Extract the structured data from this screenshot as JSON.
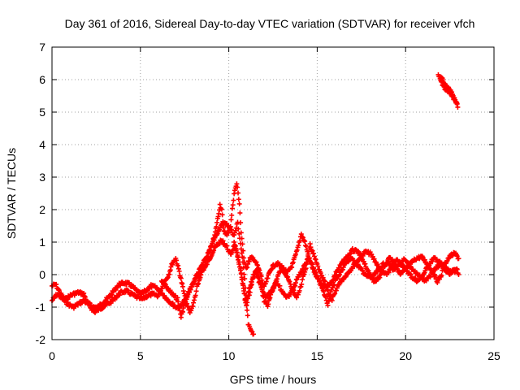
{
  "chart_data": {
    "type": "scatter",
    "title": "Day 361 of 2016, Sidereal Day-to-day VTEC variation (SDTVAR) for receiver vfch",
    "xlabel": "GPS time / hours",
    "ylabel": "SDTVAR / TECUs",
    "xlim": [
      0,
      25
    ],
    "ylim": [
      -2,
      7
    ],
    "xticks": [
      0,
      5,
      10,
      15,
      20,
      25
    ],
    "yticks": [
      -2,
      -1,
      0,
      1,
      2,
      3,
      4,
      5,
      6,
      7
    ],
    "grid": true,
    "marker": "+",
    "series_color": "#ff0000",
    "series": [
      {
        "name": "SDTVAR",
        "tracks": [
          [
            [
              0.0,
              -0.35
            ],
            [
              0.2,
              -0.3
            ],
            [
              0.4,
              -0.5
            ],
            [
              0.6,
              -0.7
            ],
            [
              0.8,
              -0.75
            ],
            [
              1.0,
              -0.65
            ],
            [
              1.2,
              -0.6
            ],
            [
              1.5,
              -0.55
            ],
            [
              1.8,
              -0.6
            ],
            [
              2.0,
              -0.85
            ],
            [
              2.3,
              -1.0
            ],
            [
              2.6,
              -1.0
            ],
            [
              2.9,
              -0.85
            ],
            [
              3.2,
              -0.7
            ],
            [
              3.5,
              -0.5
            ],
            [
              3.8,
              -0.3
            ],
            [
              4.1,
              -0.25
            ],
            [
              4.4,
              -0.3
            ],
            [
              4.7,
              -0.45
            ],
            [
              5.0,
              -0.6
            ],
            [
              5.3,
              -0.5
            ],
            [
              5.6,
              -0.35
            ],
            [
              5.9,
              -0.4
            ],
            [
              6.2,
              -0.55
            ],
            [
              6.5,
              -0.75
            ],
            [
              6.8,
              -0.9
            ],
            [
              7.0,
              -1.0
            ],
            [
              7.2,
              -1.0
            ],
            [
              7.5,
              -0.8
            ],
            [
              7.8,
              -0.5
            ],
            [
              8.1,
              -0.1
            ],
            [
              8.4,
              0.2
            ],
            [
              8.7,
              0.5
            ],
            [
              9.0,
              0.85
            ],
            [
              9.2,
              1.2
            ],
            [
              9.4,
              1.8
            ],
            [
              9.5,
              2.15
            ],
            [
              9.6,
              2.0
            ],
            [
              9.7,
              1.4
            ],
            [
              9.9,
              1.2
            ],
            [
              10.1,
              1.5
            ],
            [
              10.3,
              2.5
            ],
            [
              10.45,
              2.8
            ],
            [
              10.6,
              2.2
            ],
            [
              10.7,
              1.3
            ],
            [
              10.85,
              0.5
            ],
            [
              11.0,
              0.2
            ],
            [
              11.2,
              0.5
            ],
            [
              11.4,
              0.5
            ],
            [
              11.6,
              0.3
            ],
            [
              11.8,
              0.0
            ],
            [
              12.0,
              -0.4
            ],
            [
              12.2,
              -0.1
            ],
            [
              12.4,
              0.2
            ],
            [
              12.7,
              0.35
            ],
            [
              13.0,
              0.25
            ],
            [
              13.3,
              0.05
            ],
            [
              13.6,
              0.3
            ],
            [
              13.9,
              0.8
            ],
            [
              14.1,
              1.25
            ],
            [
              14.3,
              1.0
            ],
            [
              14.6,
              0.4
            ],
            [
              14.9,
              0.0
            ],
            [
              15.2,
              -0.3
            ],
            [
              15.5,
              -0.35
            ],
            [
              15.8,
              -0.25
            ],
            [
              16.1,
              0.1
            ],
            [
              16.4,
              0.35
            ],
            [
              16.7,
              0.55
            ],
            [
              17.0,
              0.75
            ],
            [
              17.3,
              0.7
            ],
            [
              17.6,
              0.4
            ],
            [
              17.9,
              0.1
            ],
            [
              18.2,
              -0.2
            ],
            [
              18.5,
              -0.1
            ],
            [
              18.8,
              0.2
            ],
            [
              19.1,
              0.55
            ],
            [
              19.4,
              0.35
            ],
            [
              19.7,
              0.0
            ],
            [
              20.0,
              0.15
            ],
            [
              20.3,
              0.35
            ],
            [
              20.6,
              0.5
            ],
            [
              20.9,
              0.55
            ],
            [
              21.2,
              0.35
            ],
            [
              21.5,
              0.1
            ],
            [
              21.8,
              -0.2
            ],
            [
              22.0,
              -0.05
            ],
            [
              22.2,
              0.3
            ],
            [
              22.4,
              0.5
            ],
            [
              22.6,
              0.6
            ],
            [
              22.8,
              0.65
            ],
            [
              23.0,
              0.5
            ]
          ],
          [
            [
              0.0,
              -0.8
            ],
            [
              0.3,
              -0.6
            ],
            [
              0.6,
              -0.75
            ],
            [
              0.9,
              -0.9
            ],
            [
              1.2,
              -1.0
            ],
            [
              1.5,
              -0.9
            ],
            [
              1.8,
              -0.8
            ],
            [
              2.1,
              -0.95
            ],
            [
              2.4,
              -1.15
            ],
            [
              2.7,
              -1.05
            ],
            [
              3.0,
              -0.95
            ],
            [
              3.3,
              -0.85
            ],
            [
              3.6,
              -0.7
            ],
            [
              3.9,
              -0.55
            ],
            [
              4.2,
              -0.5
            ],
            [
              4.5,
              -0.6
            ],
            [
              4.8,
              -0.7
            ],
            [
              5.1,
              -0.75
            ],
            [
              5.4,
              -0.65
            ],
            [
              5.7,
              -0.6
            ],
            [
              6.0,
              -0.65
            ],
            [
              6.3,
              -0.3
            ],
            [
              6.6,
              0.0
            ],
            [
              6.8,
              0.35
            ],
            [
              7.0,
              0.5
            ],
            [
              7.2,
              0.1
            ],
            [
              7.4,
              -0.4
            ],
            [
              7.6,
              -0.9
            ],
            [
              7.8,
              -1.15
            ],
            [
              8.0,
              -0.9
            ],
            [
              8.2,
              -0.4
            ],
            [
              8.5,
              0.1
            ],
            [
              8.8,
              0.55
            ],
            [
              9.1,
              1.0
            ],
            [
              9.4,
              1.35
            ],
            [
              9.7,
              1.6
            ],
            [
              10.0,
              1.5
            ],
            [
              10.3,
              1.2
            ],
            [
              10.5,
              1.6
            ],
            [
              10.7,
              0.8
            ],
            [
              10.9,
              -0.1
            ],
            [
              11.0,
              -0.9
            ],
            [
              11.1,
              -1.5
            ],
            [
              11.25,
              -1.75
            ],
            [
              11.4,
              -1.8
            ]
          ],
          [
            [
              6.2,
              -0.2
            ],
            [
              6.5,
              -0.4
            ],
            [
              6.8,
              -0.6
            ],
            [
              7.1,
              -0.75
            ],
            [
              7.3,
              -1.3
            ],
            [
              7.5,
              -0.9
            ],
            [
              7.8,
              -0.45
            ],
            [
              8.1,
              -0.15
            ],
            [
              8.4,
              0.05
            ],
            [
              8.7,
              0.25
            ],
            [
              9.0,
              0.6
            ],
            [
              9.3,
              0.9
            ],
            [
              9.6,
              1.05
            ],
            [
              9.9,
              0.85
            ],
            [
              10.1,
              0.6
            ],
            [
              10.3,
              0.9
            ],
            [
              10.6,
              0.35
            ],
            [
              10.8,
              -0.3
            ],
            [
              10.95,
              -0.9
            ],
            [
              11.1,
              -0.6
            ],
            [
              11.3,
              -0.2
            ],
            [
              11.5,
              0.1
            ],
            [
              11.7,
              -0.2
            ],
            [
              11.9,
              -0.5
            ],
            [
              12.1,
              -0.7
            ],
            [
              12.3,
              -0.55
            ],
            [
              12.5,
              -0.4
            ],
            [
              12.7,
              -0.2
            ],
            [
              13.0,
              -0.5
            ],
            [
              13.3,
              -0.7
            ],
            [
              13.6,
              -0.5
            ],
            [
              13.9,
              -0.1
            ],
            [
              14.2,
              0.2
            ],
            [
              14.5,
              0.5
            ],
            [
              14.8,
              0.2
            ],
            [
              15.0,
              -0.1
            ],
            [
              15.2,
              -0.3
            ],
            [
              15.4,
              -0.6
            ],
            [
              15.6,
              -0.9
            ],
            [
              15.8,
              -0.5
            ],
            [
              16.0,
              -0.2
            ],
            [
              16.3,
              0.05
            ],
            [
              16.6,
              0.35
            ],
            [
              16.9,
              0.5
            ],
            [
              17.2,
              0.35
            ],
            [
              17.5,
              0.15
            ],
            [
              17.8,
              -0.05
            ],
            [
              18.1,
              -0.1
            ],
            [
              18.4,
              0.1
            ],
            [
              18.7,
              0.3
            ],
            [
              19.0,
              0.4
            ],
            [
              19.3,
              0.15
            ],
            [
              19.6,
              0.25
            ],
            [
              19.9,
              0.45
            ],
            [
              20.2,
              0.3
            ],
            [
              20.5,
              0.1
            ],
            [
              20.8,
              -0.05
            ],
            [
              21.1,
              -0.2
            ],
            [
              21.4,
              -0.05
            ],
            [
              21.7,
              0.2
            ],
            [
              22.0,
              0.35
            ],
            [
              22.3,
              0.2
            ],
            [
              22.6,
              0.05
            ],
            [
              22.9,
              0.15
            ]
          ],
          [
            [
              10.3,
              1.0
            ],
            [
              10.5,
              0.6
            ],
            [
              10.7,
              0.0
            ],
            [
              10.85,
              -0.5
            ],
            [
              11.0,
              -0.95
            ],
            [
              11.2,
              -0.5
            ],
            [
              11.4,
              0.0
            ],
            [
              11.6,
              0.15
            ],
            [
              11.8,
              -0.3
            ],
            [
              12.0,
              -0.8
            ],
            [
              12.2,
              -0.95
            ],
            [
              12.4,
              -0.6
            ],
            [
              12.6,
              -0.3
            ],
            [
              12.8,
              0.0
            ],
            [
              13.0,
              0.2
            ],
            [
              13.2,
              0.05
            ],
            [
              13.4,
              -0.2
            ],
            [
              13.6,
              -0.45
            ],
            [
              13.8,
              -0.7
            ],
            [
              14.0,
              -0.5
            ],
            [
              14.2,
              -0.1
            ],
            [
              14.4,
              0.3
            ],
            [
              14.6,
              0.9
            ],
            [
              14.8,
              0.6
            ],
            [
              15.0,
              0.3
            ],
            [
              15.2,
              0.0
            ],
            [
              15.4,
              -0.2
            ],
            [
              15.6,
              -0.5
            ],
            [
              15.8,
              -0.8
            ],
            [
              16.0,
              -0.6
            ],
            [
              16.2,
              -0.3
            ],
            [
              16.5,
              -0.1
            ],
            [
              16.8,
              0.1
            ],
            [
              17.1,
              0.3
            ],
            [
              17.4,
              0.5
            ],
            [
              17.7,
              0.7
            ],
            [
              18.0,
              0.65
            ],
            [
              18.3,
              0.4
            ],
            [
              18.6,
              0.1
            ],
            [
              18.9,
              0.0
            ],
            [
              19.2,
              0.2
            ],
            [
              19.5,
              0.45
            ],
            [
              19.8,
              0.3
            ],
            [
              20.1,
              0.1
            ],
            [
              20.4,
              -0.1
            ],
            [
              20.7,
              -0.2
            ],
            [
              21.0,
              0.0
            ],
            [
              21.3,
              0.3
            ],
            [
              21.6,
              0.5
            ],
            [
              21.9,
              0.4
            ],
            [
              22.2,
              0.15
            ],
            [
              22.5,
              0.0
            ],
            [
              22.8,
              0.2
            ],
            [
              23.0,
              0.05
            ]
          ],
          [
            [
              21.85,
              6.15
            ],
            [
              21.95,
              6.0
            ],
            [
              22.05,
              5.9
            ],
            [
              22.15,
              5.8
            ],
            [
              22.25,
              5.7
            ],
            [
              22.35,
              5.65
            ],
            [
              22.45,
              5.62
            ],
            [
              22.55,
              5.6
            ],
            [
              22.65,
              5.5
            ],
            [
              22.75,
              5.4
            ],
            [
              22.85,
              5.3
            ],
            [
              22.95,
              5.2
            ],
            [
              22.5,
              5.7
            ],
            [
              22.2,
              5.85
            ],
            [
              22.0,
              6.1
            ]
          ]
        ]
      }
    ]
  }
}
